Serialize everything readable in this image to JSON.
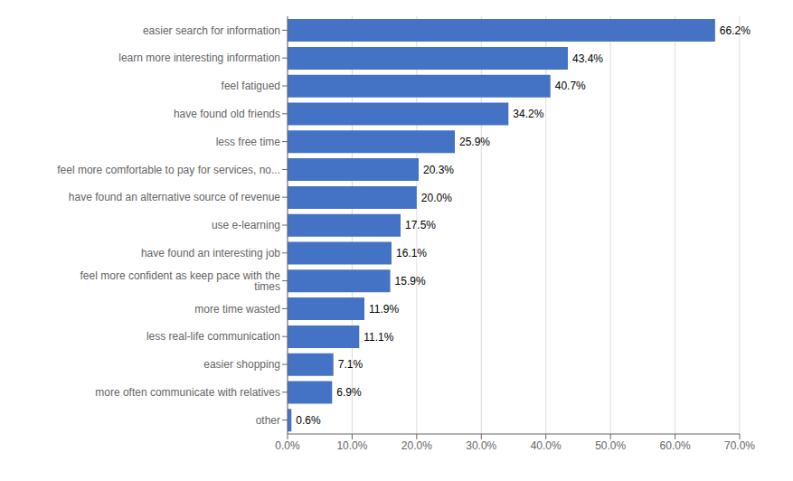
{
  "chart_data": {
    "type": "bar",
    "orientation": "horizontal",
    "categories": [
      "other",
      "more often communicate with relatives",
      "easier shopping",
      "less real-life communication",
      "more time wasted",
      "feel more confident as keep pace with the times",
      "have found an interesting job",
      "use e-learning",
      "have found an alternative source of revenue",
      "feel more comfortable to pay for services, no...",
      "less free time",
      "have found old friends",
      "feel fatigued",
      "learn more interesting information",
      "easier search for information"
    ],
    "values": [
      0.6,
      6.9,
      7.1,
      11.1,
      11.9,
      15.9,
      16.1,
      17.5,
      20.0,
      20.3,
      25.9,
      34.2,
      40.7,
      43.4,
      66.2
    ],
    "value_labels": [
      "0.6%",
      "6.9%",
      "7.1%",
      "11.1%",
      "11.9%",
      "15.9%",
      "16.1%",
      "17.5%",
      "20.0%",
      "20.3%",
      "25.9%",
      "34.2%",
      "40.7%",
      "43.4%",
      "66.2%"
    ],
    "color": "#4472C4",
    "xlim": [
      0,
      70
    ],
    "xticks": [
      {
        "value": 0,
        "label": "0.0%"
      },
      {
        "value": 10,
        "label": "10.0%"
      },
      {
        "value": 20,
        "label": "20.0%"
      },
      {
        "value": 30,
        "label": "30.0%"
      },
      {
        "value": 40,
        "label": "40.0%"
      },
      {
        "value": 50,
        "label": "50.0%"
      },
      {
        "value": 60,
        "label": "60.0%"
      },
      {
        "value": 70,
        "label": "70.0%"
      }
    ],
    "grid": true,
    "data_labels": true
  }
}
